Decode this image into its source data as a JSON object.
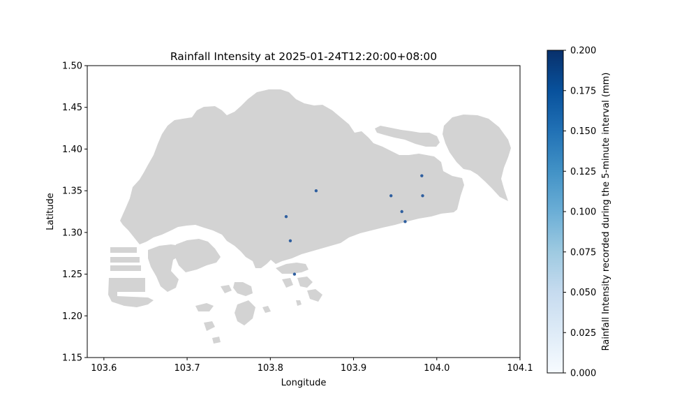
{
  "chart_data": {
    "type": "scatter",
    "title": "Rainfall Intensity at 2025-01-24T12:20:00+08:00",
    "xlabel": "Longitude",
    "ylabel": "Latitude",
    "xlim": [
      103.58,
      104.1
    ],
    "ylim": [
      1.15,
      1.5
    ],
    "x_ticks": [
      "103.6",
      "103.7",
      "103.8",
      "103.9",
      "104.0",
      "104.1"
    ],
    "y_ticks": [
      "1.15",
      "1.20",
      "1.25",
      "1.30",
      "1.35",
      "1.40",
      "1.45",
      "1.50"
    ],
    "basemap": "Singapore land area (light grey)",
    "land_color": "#d3d3d3",
    "point_color": "#2f5f9f",
    "grid": false,
    "points": [
      {
        "x": 103.855,
        "y": 1.35,
        "value": 0.2
      },
      {
        "x": 103.819,
        "y": 1.319,
        "value": 0.2
      },
      {
        "x": 103.824,
        "y": 1.29,
        "value": 0.2
      },
      {
        "x": 103.829,
        "y": 1.25,
        "value": 0.2
      },
      {
        "x": 103.945,
        "y": 1.344,
        "value": 0.2
      },
      {
        "x": 103.958,
        "y": 1.325,
        "value": 0.2
      },
      {
        "x": 103.962,
        "y": 1.313,
        "value": 0.2
      },
      {
        "x": 103.982,
        "y": 1.368,
        "value": 0.2
      },
      {
        "x": 103.983,
        "y": 1.344,
        "value": 0.2
      }
    ],
    "colorbar": {
      "label": "Rainfall Intensity recorded during the 5-minute interval (mm)",
      "min": 0,
      "max": 0.2,
      "ticks": [
        "0.000",
        "0.025",
        "0.050",
        "0.075",
        "0.100",
        "0.125",
        "0.150",
        "0.175",
        "0.200"
      ],
      "colormap": "Blues",
      "color_low": "#f7fbff",
      "color_high": "#08306b"
    }
  }
}
